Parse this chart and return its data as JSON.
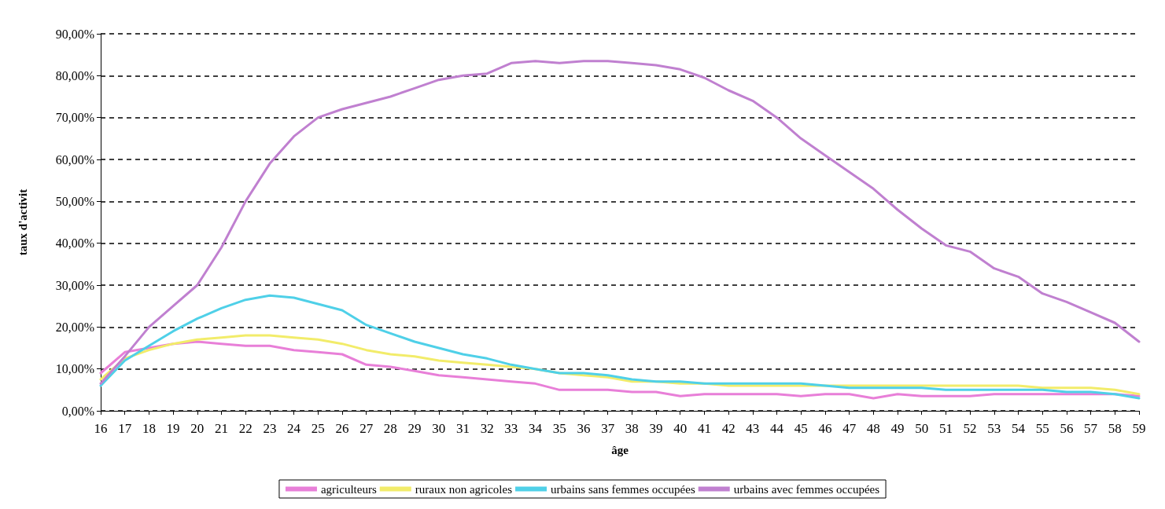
{
  "chart_data": {
    "type": "line",
    "xlabel": "âge",
    "ylabel": "taux d'activit",
    "categories": [
      "16",
      "17",
      "18",
      "19",
      "20",
      "21",
      "22",
      "23",
      "24",
      "25",
      "26",
      "27",
      "28",
      "29",
      "30",
      "31",
      "32",
      "33",
      "34",
      "35",
      "36",
      "37",
      "38",
      "39",
      "40",
      "41",
      "42",
      "43",
      "44",
      "45",
      "46",
      "47",
      "48",
      "49",
      "50",
      "51",
      "52",
      "53",
      "54",
      "55",
      "56",
      "57",
      "58",
      "59"
    ],
    "ylim": [
      0,
      90
    ],
    "yticks": [
      {
        "value": 0,
        "label": "0,00%"
      },
      {
        "value": 10,
        "label": "10,00%"
      },
      {
        "value": 20,
        "label": "20,00%"
      },
      {
        "value": 30,
        "label": "30,00%"
      },
      {
        "value": 40,
        "label": "40,00%"
      },
      {
        "value": 50,
        "label": "50,00%"
      },
      {
        "value": 60,
        "label": "60,00%"
      },
      {
        "value": 70,
        "label": "70,00%"
      },
      {
        "value": 80,
        "label": "80,00%"
      },
      {
        "value": 90,
        "label": "90,00%"
      }
    ],
    "grid": "y",
    "legend": "bottom",
    "marker": "none",
    "line_style": "solid",
    "series": [
      {
        "name": "agriculteurs",
        "color": "#e87fd8",
        "values": [
          9,
          14,
          15,
          16,
          16.5,
          16,
          15.5,
          15.5,
          14.5,
          14,
          13.5,
          11,
          10.5,
          9.5,
          8.5,
          8,
          7.5,
          7,
          6.5,
          5,
          5,
          5,
          4.5,
          4.5,
          3.5,
          4,
          4,
          4,
          4,
          3.5,
          4,
          4,
          3,
          4,
          3.5,
          3.5,
          3.5,
          4,
          4,
          4,
          4,
          4,
          4,
          3.5
        ]
      },
      {
        "name": "ruraux non agricoles",
        "color": "#f2ec6a",
        "values": [
          7.5,
          12.5,
          14.5,
          16,
          17,
          17.5,
          18,
          18,
          17.5,
          17,
          16,
          14.5,
          13.5,
          13,
          12,
          11.5,
          11,
          10.5,
          10,
          9,
          8.5,
          8,
          7,
          7,
          6.5,
          6.5,
          6,
          6,
          6,
          6,
          6,
          6,
          6,
          6,
          6,
          6,
          6,
          6,
          6,
          5.5,
          5.5,
          5.5,
          5,
          4
        ]
      },
      {
        "name": "urbains sans femmes occupées",
        "color": "#4fd0e8",
        "values": [
          6,
          12,
          15.5,
          19,
          22,
          24.5,
          26.5,
          27.5,
          27,
          25.5,
          24,
          20.5,
          18.5,
          16.5,
          15,
          13.5,
          12.5,
          11,
          10,
          9,
          9,
          8.5,
          7.5,
          7,
          7,
          6.5,
          6.5,
          6.5,
          6.5,
          6.5,
          6,
          5.5,
          5.5,
          5.5,
          5.5,
          5,
          5,
          5,
          5,
          5,
          4.5,
          4.5,
          4,
          3
        ]
      },
      {
        "name": "urbains avec femmes occupées",
        "color": "#c080d0",
        "values": [
          6.5,
          13,
          20,
          25,
          30,
          39,
          50,
          59,
          65.5,
          70,
          72,
          73.5,
          75,
          77,
          79,
          80,
          80.5,
          83,
          83.5,
          83,
          83.5,
          83.5,
          83,
          82.5,
          81.5,
          79.5,
          76.5,
          74,
          70,
          65,
          61,
          57,
          53,
          48,
          43.5,
          39.5,
          38,
          34,
          32,
          28,
          26,
          23.5,
          21,
          16.5
        ]
      }
    ]
  }
}
